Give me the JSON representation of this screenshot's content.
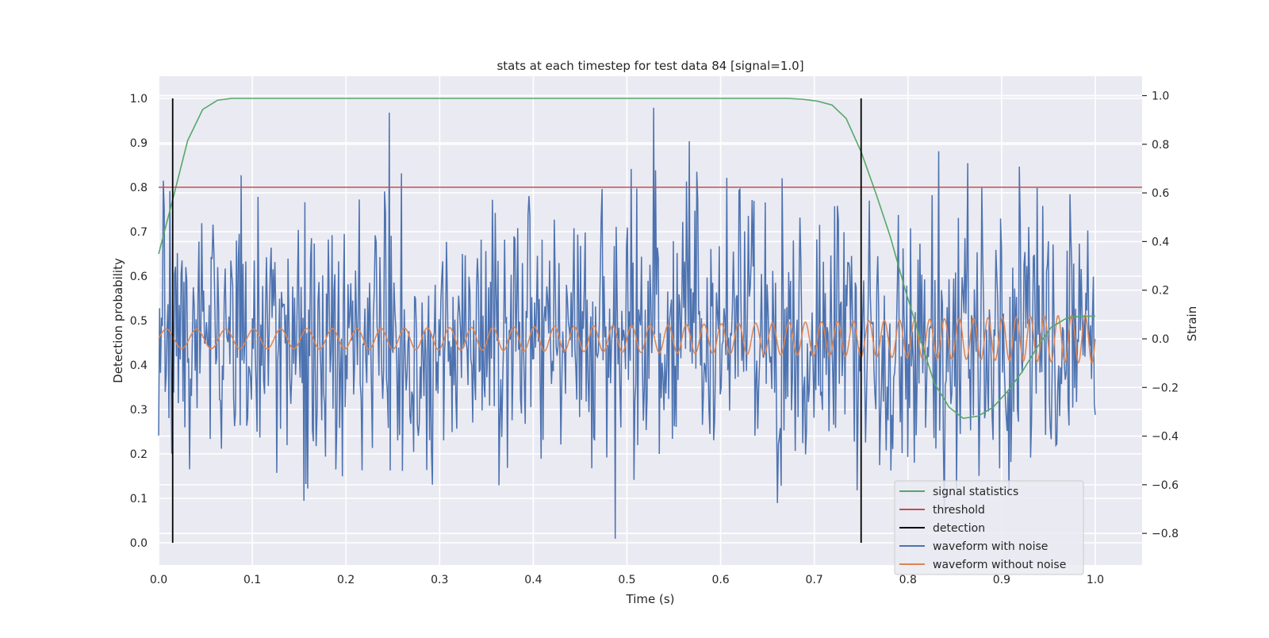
{
  "chart_data": {
    "type": "line",
    "title": "stats at each timestep for test data 84 [signal=1.0]",
    "xlabel": "Time (s)",
    "ylabel_left": "Detection probability",
    "ylabel_right": "Strain",
    "xlim": [
      0.0,
      1.05
    ],
    "ylim_left": [
      -0.05,
      1.05
    ],
    "ylim_right": [
      -0.93,
      1.08
    ],
    "x_ticks": [
      "0.0",
      "0.1",
      "0.2",
      "0.3",
      "0.4",
      "0.5",
      "0.6",
      "0.7",
      "0.8",
      "0.9",
      "1.0"
    ],
    "y_ticks_left": [
      "0.0",
      "0.1",
      "0.2",
      "0.3",
      "0.4",
      "0.5",
      "0.6",
      "0.7",
      "0.8",
      "0.9",
      "1.0"
    ],
    "y_ticks_right": [
      "−0.8",
      "−0.6",
      "−0.4",
      "−0.2",
      "0.0",
      "0.2",
      "0.4",
      "0.6",
      "0.8",
      "1.0"
    ],
    "grid": true,
    "legend_position": "lower-right",
    "series": [
      {
        "name": "signal statistics",
        "axis": "left",
        "color": "#55a868",
        "x": [
          0.0,
          0.016,
          0.031,
          0.047,
          0.063,
          0.078,
          0.094,
          0.109,
          0.125,
          0.2,
          0.3,
          0.4,
          0.5,
          0.6,
          0.672,
          0.688,
          0.703,
          0.719,
          0.734,
          0.75,
          0.766,
          0.781,
          0.797,
          0.813,
          0.828,
          0.844,
          0.859,
          0.875,
          0.891,
          0.906,
          0.922,
          0.938,
          0.953,
          0.969,
          0.984,
          1.0
        ],
        "y": [
          0.65,
          0.78,
          0.905,
          0.975,
          0.996,
          1.0,
          1.0,
          1.0,
          1.0,
          1.0,
          1.0,
          1.0,
          1.0,
          1.0,
          1.0,
          0.998,
          0.994,
          0.985,
          0.955,
          0.88,
          0.785,
          0.69,
          0.57,
          0.46,
          0.36,
          0.305,
          0.28,
          0.285,
          0.305,
          0.34,
          0.385,
          0.44,
          0.485,
          0.505,
          0.51,
          0.51
        ]
      },
      {
        "name": "threshold",
        "axis": "left",
        "color": "#c44e52",
        "x": [
          0.0,
          1.05
        ],
        "y": [
          0.8,
          0.8
        ]
      },
      {
        "name": "detection",
        "axis": "left",
        "color": "#000000",
        "segments": [
          {
            "x": 0.015,
            "y0": 0.0,
            "y1": 1.0
          },
          {
            "x": 0.75,
            "y0": 0.0,
            "y1": 1.0
          }
        ]
      },
      {
        "name": "waveform with noise",
        "axis": "right",
        "color": "#4c72b0",
        "x_range": [
          0.0,
          1.0
        ],
        "n_points": 1000,
        "approx_std": 0.28,
        "y_min": -0.85,
        "y_max": 1.01
      },
      {
        "name": "waveform without noise",
        "axis": "right",
        "color": "#dd8452",
        "x_range": [
          0.0,
          1.0
        ],
        "amplitude_start": 0.04,
        "amplitude_end": 0.1,
        "cycles": 50
      }
    ]
  }
}
